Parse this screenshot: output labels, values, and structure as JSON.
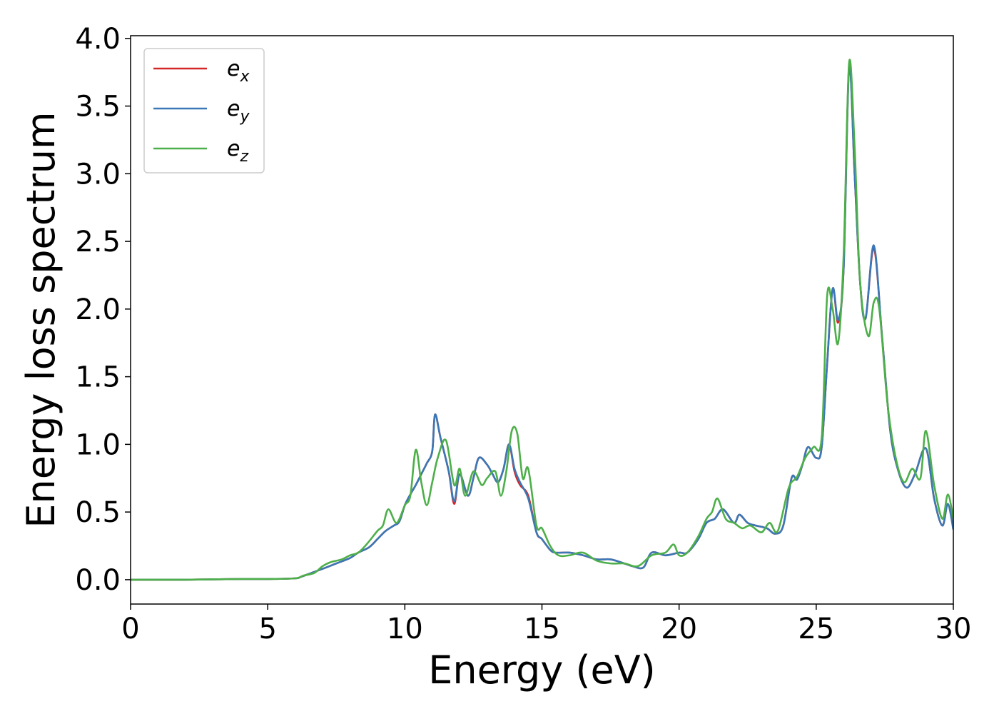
{
  "chart_data": {
    "type": "line",
    "title": "",
    "xlabel": "Energy (eV)",
    "ylabel": "Energy loss spectrum",
    "xlim": [
      0,
      30
    ],
    "ylim": [
      -0.18,
      4.02
    ],
    "xticks": [
      0,
      5,
      10,
      15,
      20,
      25,
      30
    ],
    "yticks": [
      0.0,
      0.5,
      1.0,
      1.5,
      2.0,
      2.5,
      3.0,
      3.5,
      4.0
    ],
    "xtick_labels": [
      "0",
      "5",
      "10",
      "15",
      "20",
      "25",
      "30"
    ],
    "ytick_labels": [
      "0.0",
      "0.5",
      "1.0",
      "1.5",
      "2.0",
      "2.5",
      "3.0",
      "3.5",
      "4.0"
    ],
    "grid": false,
    "legend": {
      "placement": "upper-left"
    },
    "series": [
      {
        "name": "e",
        "subscript": "x",
        "color": "#d62728",
        "x": [
          0,
          2,
          4,
          5,
          6,
          6.2,
          6.6,
          7,
          7.5,
          8,
          8.3,
          8.7,
          9,
          9.3,
          9.6,
          9.8,
          10,
          10.2,
          10.4,
          10.6,
          10.8,
          11,
          11.1,
          11.3,
          11.6,
          11.8,
          12,
          12.3,
          12.5,
          12.7,
          13,
          13.2,
          13.4,
          13.6,
          13.8,
          14,
          14.2,
          14.5,
          14.8,
          15,
          15.3,
          15.5,
          16,
          16.5,
          17,
          17.5,
          18,
          18.3,
          18.7,
          19,
          19.5,
          20,
          20.3,
          20.7,
          21,
          21.3,
          21.6,
          22,
          22.2,
          22.5,
          22.8,
          23.2,
          23.5,
          23.8,
          24.1,
          24.3,
          24.5,
          24.7,
          25,
          25.2,
          25.4,
          25.6,
          25.8,
          26,
          26.2,
          26.4,
          26.6,
          26.8,
          27.1,
          27.4,
          27.7,
          28,
          28.3,
          28.6,
          29,
          29.3,
          29.6,
          29.8,
          30
        ],
        "y": [
          0,
          0,
          0.005,
          0.005,
          0.01,
          0.02,
          0.05,
          0.08,
          0.12,
          0.16,
          0.2,
          0.24,
          0.3,
          0.36,
          0.4,
          0.43,
          0.55,
          0.63,
          0.7,
          0.78,
          0.86,
          0.95,
          1.22,
          1.05,
          0.8,
          0.56,
          0.78,
          0.62,
          0.75,
          0.9,
          0.85,
          0.78,
          0.72,
          0.82,
          1.0,
          0.8,
          0.7,
          0.62,
          0.35,
          0.3,
          0.22,
          0.2,
          0.2,
          0.18,
          0.15,
          0.15,
          0.12,
          0.1,
          0.09,
          0.2,
          0.18,
          0.2,
          0.2,
          0.3,
          0.42,
          0.45,
          0.52,
          0.42,
          0.48,
          0.42,
          0.4,
          0.38,
          0.34,
          0.4,
          0.75,
          0.74,
          0.85,
          0.98,
          0.9,
          0.98,
          1.6,
          2.15,
          1.9,
          2.3,
          3.8,
          3.0,
          2.2,
          1.93,
          2.45,
          1.8,
          1.1,
          0.8,
          0.68,
          0.78,
          0.97,
          0.6,
          0.4,
          0.56,
          0.38
        ]
      },
      {
        "name": "e",
        "subscript": "y",
        "color": "#3a78b6",
        "x": [
          0,
          2,
          4,
          5,
          6,
          6.2,
          6.6,
          7,
          7.5,
          8,
          8.3,
          8.7,
          9,
          9.3,
          9.6,
          9.8,
          10,
          10.2,
          10.4,
          10.6,
          10.8,
          11,
          11.1,
          11.3,
          11.6,
          11.8,
          12,
          12.3,
          12.5,
          12.7,
          13,
          13.2,
          13.4,
          13.6,
          13.8,
          14,
          14.2,
          14.5,
          14.8,
          15,
          15.3,
          15.5,
          16,
          16.5,
          17,
          17.5,
          18,
          18.3,
          18.7,
          19,
          19.5,
          20,
          20.3,
          20.7,
          21,
          21.3,
          21.6,
          22,
          22.2,
          22.5,
          22.8,
          23.2,
          23.5,
          23.8,
          24.1,
          24.3,
          24.5,
          24.7,
          25,
          25.2,
          25.4,
          25.6,
          25.8,
          26,
          26.2,
          26.4,
          26.6,
          26.8,
          27.1,
          27.4,
          27.7,
          28,
          28.3,
          28.6,
          29,
          29.3,
          29.6,
          29.8,
          30
        ],
        "y": [
          0,
          0,
          0.005,
          0.005,
          0.01,
          0.02,
          0.05,
          0.08,
          0.12,
          0.16,
          0.2,
          0.24,
          0.3,
          0.36,
          0.4,
          0.43,
          0.55,
          0.63,
          0.7,
          0.78,
          0.86,
          0.95,
          1.22,
          1.05,
          0.8,
          0.58,
          0.78,
          0.62,
          0.75,
          0.9,
          0.85,
          0.78,
          0.72,
          0.82,
          1.0,
          0.82,
          0.72,
          0.6,
          0.35,
          0.3,
          0.22,
          0.2,
          0.2,
          0.18,
          0.15,
          0.15,
          0.12,
          0.1,
          0.09,
          0.2,
          0.18,
          0.2,
          0.2,
          0.3,
          0.42,
          0.45,
          0.52,
          0.42,
          0.48,
          0.42,
          0.4,
          0.38,
          0.34,
          0.4,
          0.75,
          0.74,
          0.85,
          0.98,
          0.9,
          0.98,
          1.6,
          2.15,
          1.92,
          2.3,
          3.78,
          3.0,
          2.2,
          1.93,
          2.47,
          1.8,
          1.1,
          0.8,
          0.68,
          0.78,
          0.97,
          0.6,
          0.4,
          0.56,
          0.37
        ]
      },
      {
        "name": "e",
        "subscript": "z",
        "color": "#4daf4a",
        "x": [
          0,
          2,
          4,
          5,
          6,
          6.3,
          6.7,
          7,
          7.3,
          7.7,
          8,
          8.3,
          8.6,
          9,
          9.2,
          9.4,
          9.7,
          10,
          10.2,
          10.4,
          10.6,
          10.8,
          11,
          11.2,
          11.5,
          11.8,
          12,
          12.2,
          12.5,
          12.8,
          13,
          13.3,
          13.5,
          13.7,
          13.9,
          14.1,
          14.3,
          14.5,
          14.8,
          15,
          15.3,
          15.6,
          16,
          16.5,
          17,
          17.5,
          18,
          18.5,
          19,
          19.5,
          19.8,
          20,
          20.3,
          20.7,
          21,
          21.2,
          21.4,
          21.7,
          22,
          22.3,
          22.6,
          23,
          23.3,
          23.6,
          24,
          24.3,
          24.6,
          24.9,
          25.2,
          25.4,
          25.6,
          25.8,
          26,
          26.2,
          26.4,
          26.6,
          26.9,
          27.1,
          27.3,
          27.6,
          27.9,
          28.2,
          28.5,
          28.8,
          29,
          29.3,
          29.6,
          29.8,
          30
        ],
        "y": [
          0,
          0,
          0.005,
          0.005,
          0.01,
          0.03,
          0.05,
          0.1,
          0.13,
          0.15,
          0.18,
          0.2,
          0.26,
          0.36,
          0.4,
          0.52,
          0.42,
          0.55,
          0.62,
          0.96,
          0.72,
          0.55,
          0.72,
          0.9,
          1.03,
          0.7,
          0.82,
          0.62,
          0.8,
          0.7,
          0.75,
          0.8,
          0.62,
          0.8,
          1.1,
          1.08,
          0.75,
          0.82,
          0.4,
          0.38,
          0.25,
          0.18,
          0.18,
          0.2,
          0.14,
          0.12,
          0.12,
          0.1,
          0.18,
          0.2,
          0.26,
          0.18,
          0.2,
          0.32,
          0.45,
          0.5,
          0.6,
          0.45,
          0.42,
          0.38,
          0.4,
          0.35,
          0.42,
          0.36,
          0.68,
          0.76,
          0.9,
          0.98,
          1.05,
          2.1,
          2.0,
          1.75,
          2.4,
          3.82,
          3.2,
          2.2,
          1.8,
          2.05,
          2.0,
          1.3,
          0.9,
          0.72,
          0.82,
          0.75,
          1.1,
          0.7,
          0.45,
          0.63,
          0.45
        ]
      }
    ]
  }
}
